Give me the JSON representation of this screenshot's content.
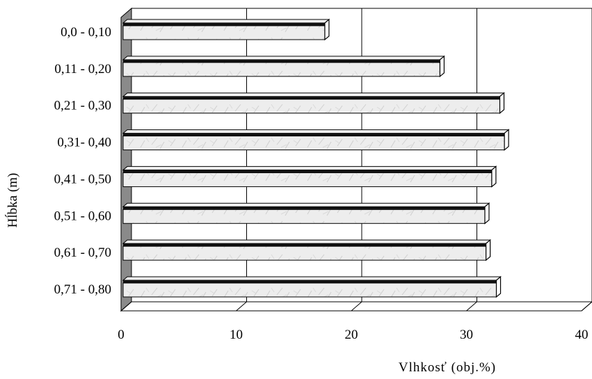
{
  "chart_data": {
    "type": "bar",
    "orientation": "horizontal",
    "style": "3d",
    "categories": [
      "0,0 - 0,10",
      "0,11 - 0,20",
      "0,21 - 0,30",
      "0,31- 0,40",
      "0,41 - 0,50",
      "0,51 - 0,60",
      "0,61 - 0,70",
      "0,71 - 0,80"
    ],
    "values": [
      17.7,
      27.7,
      32.9,
      33.3,
      32.2,
      31.6,
      31.7,
      32.6
    ],
    "xlim": [
      0,
      40
    ],
    "xticks": [
      "0",
      "10",
      "20",
      "30",
      "40"
    ],
    "xlabel": "Vlhkosť  (obj.%)",
    "ylabel": "Hĺbka (m)",
    "grid": true,
    "bar_color": "#ededed"
  }
}
